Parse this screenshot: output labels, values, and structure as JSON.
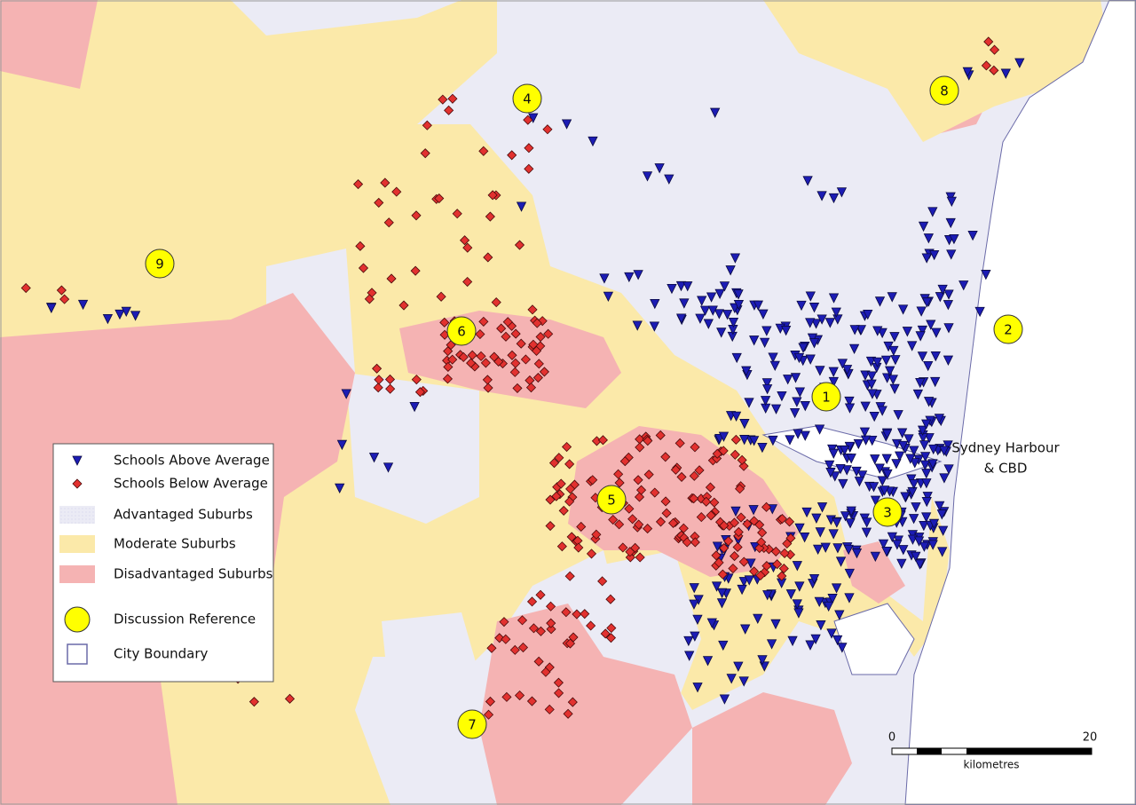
{
  "legend": {
    "items": [
      "Schools Above Average",
      "Schools Below Average",
      "Advantaged Suburbs",
      "Moderate Suburbs",
      "Disadvantaged Suburbs",
      "Discussion Reference",
      "City Boundary"
    ]
  },
  "references": [
    "1",
    "2",
    "3",
    "4",
    "5",
    "6",
    "7",
    "8",
    "9"
  ],
  "annotation": [
    "Sydney Harbour",
    "& CBD"
  ],
  "scale_bar": {
    "ticks": [
      "0",
      "20"
    ],
    "unit": "kilometres"
  }
}
